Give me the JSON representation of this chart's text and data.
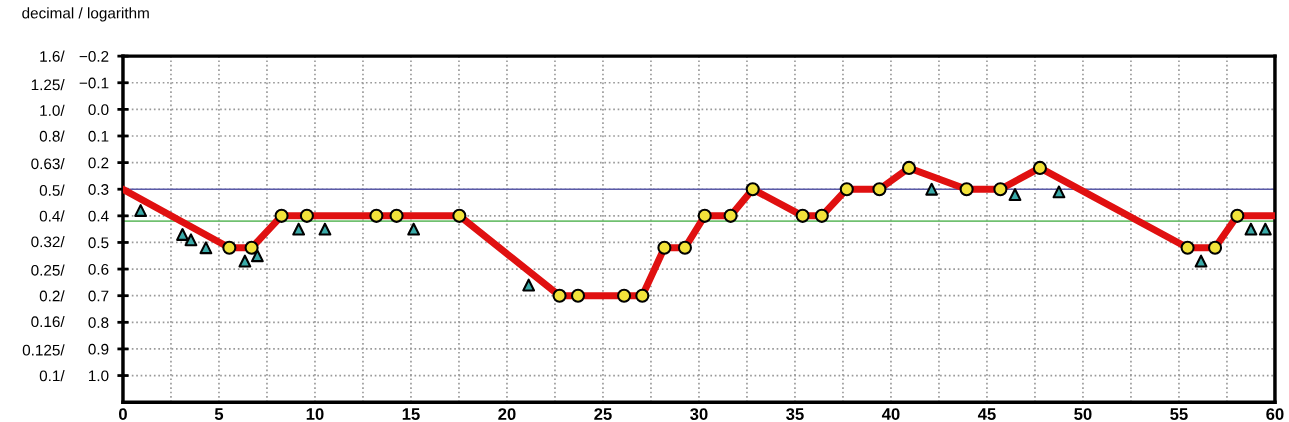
{
  "chart_data": {
    "type": "line",
    "ylabel": "decimal / logarithm",
    "xlim": [
      0,
      60
    ],
    "xticks": [
      0,
      {
        "value": 2.5,
        "label": null
      },
      5,
      {
        "value": 7.5,
        "label": null
      },
      10,
      {
        "value": 12.5,
        "label": null
      },
      15,
      {
        "value": 17.5,
        "label": null
      },
      20,
      {
        "value": 22.5,
        "label": null
      },
      25,
      {
        "value": 27.5,
        "label": null
      },
      30,
      {
        "value": 32.5,
        "label": null
      },
      35,
      {
        "value": 37.5,
        "label": null
      },
      40,
      {
        "value": 42.5,
        "label": null
      },
      45,
      {
        "value": 47.5,
        "label": null
      },
      50,
      {
        "value": 52.5,
        "label": null
      },
      55,
      {
        "value": 57.5,
        "label": null
      },
      60
    ],
    "ylim": [
      1.1,
      -0.2
    ],
    "yticks": [
      {
        "value": -0.2,
        "label": "−0.2"
      },
      {
        "value": -0.1,
        "label": "−0.1"
      },
      {
        "value": 0.0,
        "label": "0.0"
      },
      0.1,
      0.2,
      0.3,
      0.4,
      0.5,
      0.6,
      0.7,
      0.8,
      0.9,
      {
        "value": 1.0,
        "label": "1.0"
      }
    ],
    "log": "y2",
    "y2lim": [
      0.0794,
      1.6
    ],
    "y2ticks": [
      {
        "value": 1.6,
        "label": "1.6/"
      },
      {
        "value": 1.25,
        "label": "1.25/"
      },
      {
        "value": 1.0,
        "label": "1.0/"
      },
      {
        "value": 0.8,
        "label": "0.8/"
      },
      {
        "value": 0.63,
        "label": "0.63/"
      },
      {
        "value": 0.5,
        "label": "0.5/"
      },
      {
        "value": 0.4,
        "label": "0.4/"
      },
      {
        "value": 0.32,
        "label": "0.32/"
      },
      {
        "value": 0.25,
        "label": "0.25/"
      },
      {
        "value": 0.2,
        "label": "0.2/"
      },
      {
        "value": 0.16,
        "label": "0.16/"
      },
      {
        "value": 0.125,
        "label": "0.125/"
      },
      {
        "value": 0.1,
        "label": "0.1/"
      }
    ],
    "grid": true,
    "ref_lines": [
      {
        "axis": "y",
        "value": 0.3,
        "color": "#5a5aa8"
      },
      {
        "axis": "y",
        "value": 0.42,
        "color": "#70c070"
      }
    ],
    "series": [
      {
        "type": "line",
        "color": "#e01010",
        "marker": "none",
        "x": [
          0,
          5.54,
          6.7,
          8.26,
          9.58,
          13.2,
          14.25,
          17.52,
          22.74,
          23.7,
          26.1,
          27.05,
          28.2,
          29.27,
          30.3,
          31.65,
          32.8,
          35.4,
          36.4,
          37.7,
          39.4,
          40.94,
          43.94,
          45.7,
          47.76,
          55.45,
          56.88,
          58.04,
          60
        ],
        "values": [
          0.3,
          0.52,
          0.52,
          0.4,
          0.4,
          0.4,
          0.4,
          0.4,
          0.7,
          0.7,
          0.7,
          0.7,
          0.52,
          0.52,
          0.4,
          0.4,
          0.3,
          0.4,
          0.4,
          0.3,
          0.3,
          0.22,
          0.3,
          0.3,
          0.22,
          0.52,
          0.52,
          0.4,
          0.4
        ]
      },
      {
        "type": "scatter",
        "color": "#f2e23a",
        "marker": "circle",
        "x": [
          5.54,
          6.7,
          8.26,
          9.58,
          13.2,
          14.25,
          17.52,
          22.74,
          23.7,
          26.1,
          27.05,
          28.2,
          29.27,
          30.3,
          31.65,
          32.8,
          35.4,
          36.4,
          37.7,
          39.4,
          40.94,
          43.94,
          45.7,
          47.76,
          55.45,
          56.88,
          58.04
        ],
        "values": [
          0.52,
          0.52,
          0.4,
          0.4,
          0.4,
          0.4,
          0.4,
          0.7,
          0.7,
          0.7,
          0.7,
          0.52,
          0.52,
          0.4,
          0.4,
          0.3,
          0.4,
          0.4,
          0.3,
          0.3,
          0.22,
          0.3,
          0.3,
          0.22,
          0.52,
          0.52,
          0.4
        ]
      },
      {
        "type": "scatter",
        "color": "#3aaaa8",
        "marker": "triangle",
        "x": [
          0.92,
          3.1,
          3.54,
          4.32,
          6.35,
          7.0,
          9.15,
          10.52,
          15.14,
          21.13,
          42.12,
          46.46,
          48.75,
          56.15,
          58.75,
          59.5
        ],
        "values": [
          0.38,
          0.47,
          0.49,
          0.52,
          0.57,
          0.55,
          0.45,
          0.45,
          0.45,
          0.66,
          0.3,
          0.32,
          0.31,
          0.57,
          0.45,
          0.45
        ]
      }
    ]
  }
}
